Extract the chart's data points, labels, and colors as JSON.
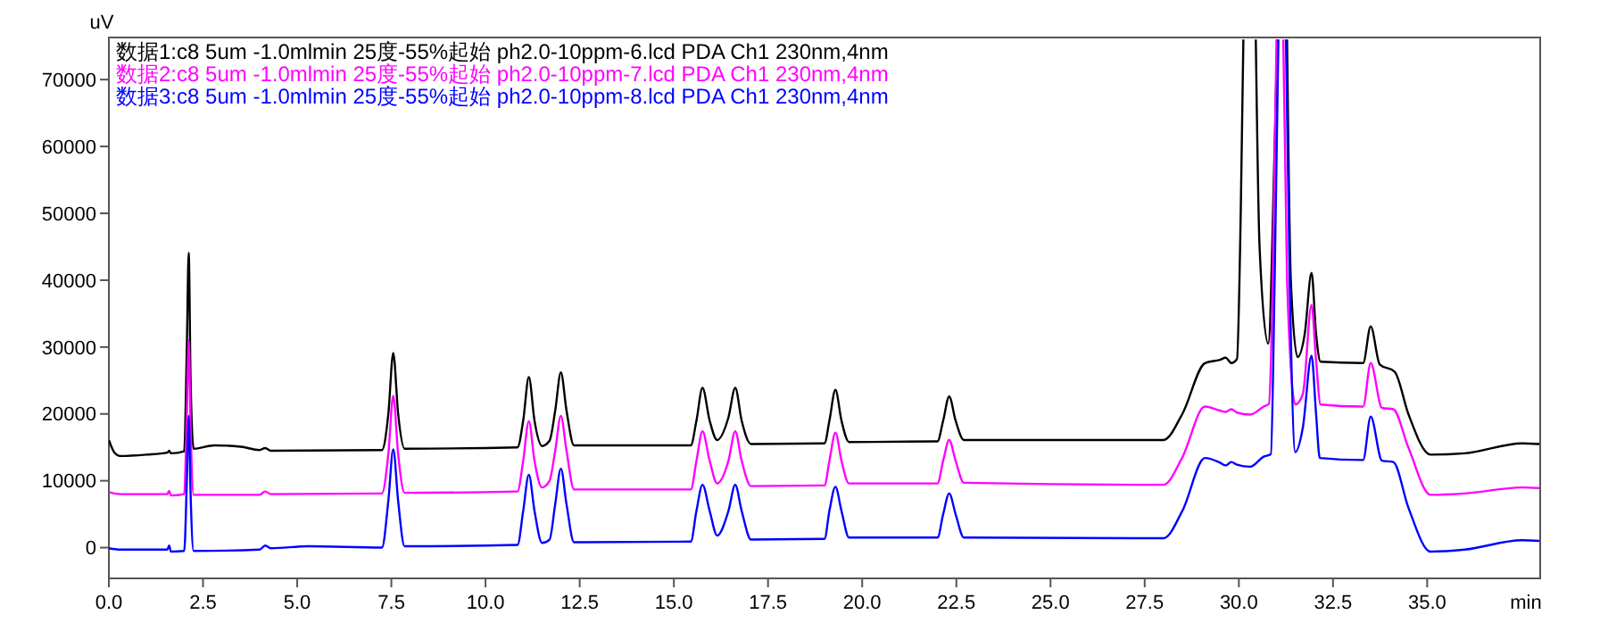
{
  "chart_data": {
    "type": "line",
    "xlabel": "min",
    "ylabel": "uV",
    "xlim": [
      0,
      38
    ],
    "ylim": [
      -4600,
      76300
    ],
    "xticks": [
      {
        "value": 0,
        "label": "0.0"
      },
      {
        "value": 2.5,
        "label": "2.5"
      },
      {
        "value": 5,
        "label": "5.0"
      },
      {
        "value": 7.5,
        "label": "7.5"
      },
      {
        "value": 10,
        "label": "10.0"
      },
      {
        "value": 12.5,
        "label": "12.5"
      },
      {
        "value": 15,
        "label": "15.0"
      },
      {
        "value": 17.5,
        "label": "17.5"
      },
      {
        "value": 20,
        "label": "20.0"
      },
      {
        "value": 22.5,
        "label": "22.5"
      },
      {
        "value": 25,
        "label": "25.0"
      },
      {
        "value": 27.5,
        "label": "27.5"
      },
      {
        "value": 30,
        "label": "30.0"
      },
      {
        "value": 32.5,
        "label": "32.5"
      },
      {
        "value": 35,
        "label": "35.0"
      }
    ],
    "yticks": [
      0,
      10000,
      20000,
      30000,
      40000,
      50000,
      60000,
      70000
    ],
    "grid": false,
    "legend": "top left",
    "marker": "none",
    "line_style": "solid",
    "series": [
      {
        "name": "数据1:c8 5um -1.0mlmin 25度-55%起始 ph2.0-10ppm-6.lcd PDA Ch1 230nm,4nm",
        "color": "#000000",
        "x": [
          0,
          0.15,
          0.3,
          1.0,
          1.55,
          1.6,
          1.65,
          2.0,
          2.07,
          2.12,
          2.17,
          2.25,
          2.8,
          3.5,
          4.0,
          4.15,
          4.3,
          7.25,
          7.42,
          7.55,
          7.68,
          7.85,
          10.85,
          11.0,
          11.15,
          11.3,
          11.5,
          11.7,
          11.85,
          12.0,
          12.15,
          12.35,
          15.45,
          15.6,
          15.76,
          15.95,
          16.15,
          16.45,
          16.63,
          16.8,
          17.05,
          19.0,
          19.13,
          19.29,
          19.45,
          19.65,
          22.0,
          22.15,
          22.31,
          22.48,
          22.7,
          28.0,
          28.5,
          29.1,
          29.5,
          29.65,
          29.8,
          29.95,
          30.05,
          30.12,
          30.3,
          30.45,
          30.55,
          30.78,
          30.95,
          31.02,
          31.15,
          31.28,
          31.38,
          31.56,
          31.75,
          31.93,
          32.05,
          32.17,
          33.3,
          33.5,
          33.74,
          34.14,
          34.5,
          35.09,
          36.0,
          37.52,
          37.98
        ],
        "values": [
          16100,
          14200,
          13700,
          13900,
          14200,
          14500,
          14100,
          14400,
          30000,
          44100,
          25000,
          14800,
          15300,
          15100,
          14600,
          14900,
          14500,
          14600,
          20000,
          29100,
          20000,
          14800,
          15000,
          19000,
          25500,
          19000,
          15200,
          16000,
          20500,
          26200,
          20500,
          15300,
          15300,
          19000,
          23900,
          19000,
          16100,
          19500,
          23900,
          19000,
          15500,
          15600,
          19000,
          23600,
          19000,
          15800,
          15900,
          19000,
          22600,
          19000,
          16100,
          16100,
          20000,
          27600,
          28100,
          28400,
          27600,
          28200,
          50000,
          76000,
          null,
          76000,
          45000,
          30500,
          60000,
          76000,
          null,
          76000,
          40000,
          28500,
          32000,
          41100,
          32000,
          27800,
          27600,
          33100,
          27400,
          26300,
          20000,
          13900,
          14100,
          15600,
          15500
        ]
      },
      {
        "name": "数据2:c8 5um -1.0mlmin 25度-55%起始 ph2.0-10ppm-7.lcd PDA Ch1 230nm,4nm",
        "color": "#ff00ff",
        "x": [
          0,
          0.3,
          1.55,
          1.6,
          1.65,
          2.0,
          2.07,
          2.12,
          2.17,
          2.25,
          4.0,
          4.15,
          4.3,
          7.25,
          7.42,
          7.55,
          7.68,
          7.85,
          10.85,
          11.0,
          11.15,
          11.3,
          11.5,
          11.7,
          11.85,
          12.0,
          12.15,
          12.35,
          15.45,
          15.6,
          15.76,
          15.95,
          16.15,
          16.45,
          16.63,
          16.8,
          17.05,
          19.0,
          19.13,
          19.29,
          19.45,
          19.65,
          22.0,
          22.15,
          22.31,
          22.48,
          22.7,
          28.0,
          28.5,
          29.1,
          29.5,
          29.65,
          29.8,
          29.95,
          30.3,
          30.66,
          30.8,
          30.9,
          31.0,
          31.1,
          31.18,
          31.28,
          31.5,
          31.7,
          31.93,
          32.05,
          32.17,
          33.3,
          33.5,
          33.8,
          34.1,
          34.5,
          35.09,
          36.0,
          37.52,
          37.98
        ],
        "values": [
          8300,
          8000,
          8000,
          8500,
          7800,
          8000,
          20000,
          31000,
          18000,
          7900,
          7900,
          8400,
          8000,
          8100,
          14000,
          22700,
          14000,
          8200,
          8400,
          13000,
          18900,
          13000,
          9000,
          10000,
          14500,
          19700,
          14500,
          8700,
          8700,
          13000,
          17400,
          13000,
          9600,
          13000,
          17400,
          13000,
          9200,
          9300,
          13000,
          17200,
          13000,
          9600,
          9600,
          13000,
          16100,
          13000,
          9700,
          9400,
          13500,
          21100,
          20500,
          20300,
          20700,
          20200,
          19900,
          21100,
          21500,
          40000,
          76000,
          null,
          76000,
          40000,
          21400,
          23000,
          36300,
          28000,
          21400,
          21100,
          27600,
          20900,
          20700,
          15000,
          7900,
          8100,
          9000,
          8900
        ]
      },
      {
        "name": "数据3:c8 5um -1.0mlmin 25度-55%起始 ph2.0-10ppm-8.lcd PDA Ch1 230nm,4nm",
        "color": "#0000ff",
        "x": [
          0,
          0.3,
          1.55,
          1.6,
          1.65,
          2.0,
          2.07,
          2.12,
          2.17,
          2.25,
          4.0,
          4.15,
          4.3,
          5.3,
          7.25,
          7.42,
          7.55,
          7.68,
          7.85,
          10.85,
          11.0,
          11.15,
          11.3,
          11.5,
          11.7,
          11.85,
          12.0,
          12.15,
          12.35,
          15.45,
          15.6,
          15.76,
          15.95,
          16.15,
          16.45,
          16.63,
          16.8,
          17.05,
          19.0,
          19.13,
          19.29,
          19.45,
          19.65,
          22.0,
          22.15,
          22.31,
          22.48,
          22.7,
          28.0,
          28.5,
          29.1,
          29.5,
          29.65,
          29.8,
          29.95,
          30.3,
          30.66,
          30.85,
          30.95,
          31.05,
          31.15,
          31.25,
          31.35,
          31.5,
          31.7,
          31.93,
          32.05,
          32.15,
          33.3,
          33.5,
          33.8,
          34.1,
          34.5,
          35.09,
          36.0,
          37.52,
          37.98
        ],
        "values": [
          -100,
          -300,
          -300,
          300,
          -600,
          -500,
          10000,
          19700,
          8000,
          -500,
          -300,
          300,
          -100,
          200,
          0,
          7000,
          14700,
          7000,
          200,
          400,
          5500,
          10900,
          5500,
          700,
          1200,
          6500,
          11800,
          6500,
          800,
          900,
          5500,
          9400,
          5500,
          1800,
          5500,
          9400,
          5500,
          1200,
          1300,
          5500,
          9100,
          5500,
          1500,
          1500,
          5000,
          8100,
          5000,
          1500,
          1400,
          5500,
          13400,
          12700,
          12300,
          12800,
          12400,
          12100,
          13600,
          14000,
          40000,
          76000,
          null,
          76000,
          40000,
          14300,
          18000,
          28700,
          20000,
          13400,
          13100,
          19600,
          13000,
          12800,
          6000,
          -600,
          -300,
          1100,
          1000
        ]
      }
    ]
  }
}
